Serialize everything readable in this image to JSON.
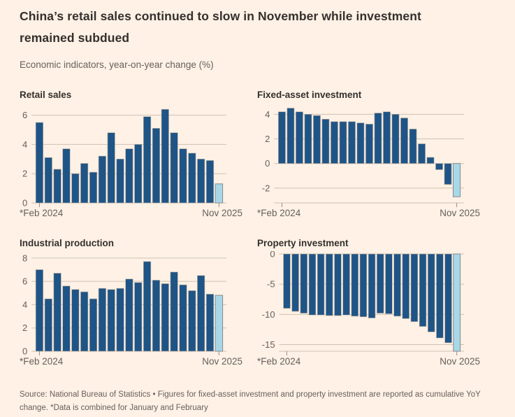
{
  "header": {
    "title": "China’s retail sales continued to slow in November while investment remained subdued",
    "subtitle": "Economic indicators, year-on-year change (%)"
  },
  "footer": {
    "source": "Source: National Bureau of Statistics • Figures for fixed-asset investment and property investment are reported as cumulative YoY change. *Data is combined for January and February"
  },
  "colors": {
    "background": "#fff1e5",
    "bar": "#1f5486",
    "bar_highlight": "#a8d8e8",
    "bar_stroke": "#b3a99c",
    "bar_highlight_stroke": "#85898c",
    "grid": "#cec2b3",
    "tick": "#9a9086",
    "axis_text": "#66605c",
    "title_text": "#33302e",
    "muted_text": "#66605c"
  },
  "chart_data": [
    {
      "type": "bar",
      "title": "Retail sales",
      "x_tick_labels": [
        "*Feb 2024",
        "Nov 2025"
      ],
      "yticks": [
        6,
        4,
        2,
        0
      ],
      "ylim": [
        0,
        6.65
      ],
      "values": [
        5.5,
        3.1,
        2.3,
        3.7,
        2.0,
        2.7,
        2.1,
        3.2,
        4.8,
        3.0,
        3.7,
        4.0,
        5.9,
        5.1,
        6.4,
        4.8,
        3.7,
        3.4,
        3.0,
        2.9,
        1.3
      ],
      "highlight_last": true
    },
    {
      "type": "bar",
      "title": "Fixed-asset investment",
      "x_tick_labels": [
        "*Feb 2024",
        "Nov 2025"
      ],
      "yticks": [
        4,
        2,
        0,
        -2
      ],
      "ylim": [
        -3.2,
        4.7
      ],
      "values": [
        4.2,
        4.5,
        4.2,
        4.0,
        3.9,
        3.6,
        3.4,
        3.4,
        3.4,
        3.3,
        3.2,
        4.1,
        4.2,
        4.0,
        3.7,
        2.8,
        1.6,
        0.5,
        -0.5,
        -1.7,
        -2.7
      ],
      "highlight_last": true
    },
    {
      "type": "bar",
      "title": "Industrial production",
      "x_tick_labels": [
        "*Feb 2024",
        "Nov 2025"
      ],
      "yticks": [
        8,
        6,
        4,
        2,
        0
      ],
      "ylim": [
        0,
        8.35
      ],
      "values": [
        7.0,
        4.5,
        6.7,
        5.6,
        5.3,
        5.1,
        4.5,
        5.4,
        5.3,
        5.4,
        6.2,
        5.9,
        7.7,
        6.1,
        5.8,
        6.8,
        5.7,
        5.2,
        6.5,
        4.9,
        4.8
      ],
      "highlight_last": true
    },
    {
      "type": "bar",
      "title": "Property investment",
      "x_tick_labels": [
        "*Feb 2024",
        "Nov 2025"
      ],
      "yticks": [
        0,
        -5,
        -10,
        -15
      ],
      "ylim": [
        -16.1,
        0
      ],
      "values": [
        -9.0,
        -9.5,
        -9.8,
        -10.1,
        -10.1,
        -10.2,
        -10.2,
        -10.1,
        -10.3,
        -10.4,
        -10.6,
        -9.8,
        -9.9,
        -10.3,
        -10.7,
        -11.2,
        -12.0,
        -12.9,
        -13.9,
        -14.7,
        -16.1
      ],
      "highlight_last": true
    }
  ]
}
